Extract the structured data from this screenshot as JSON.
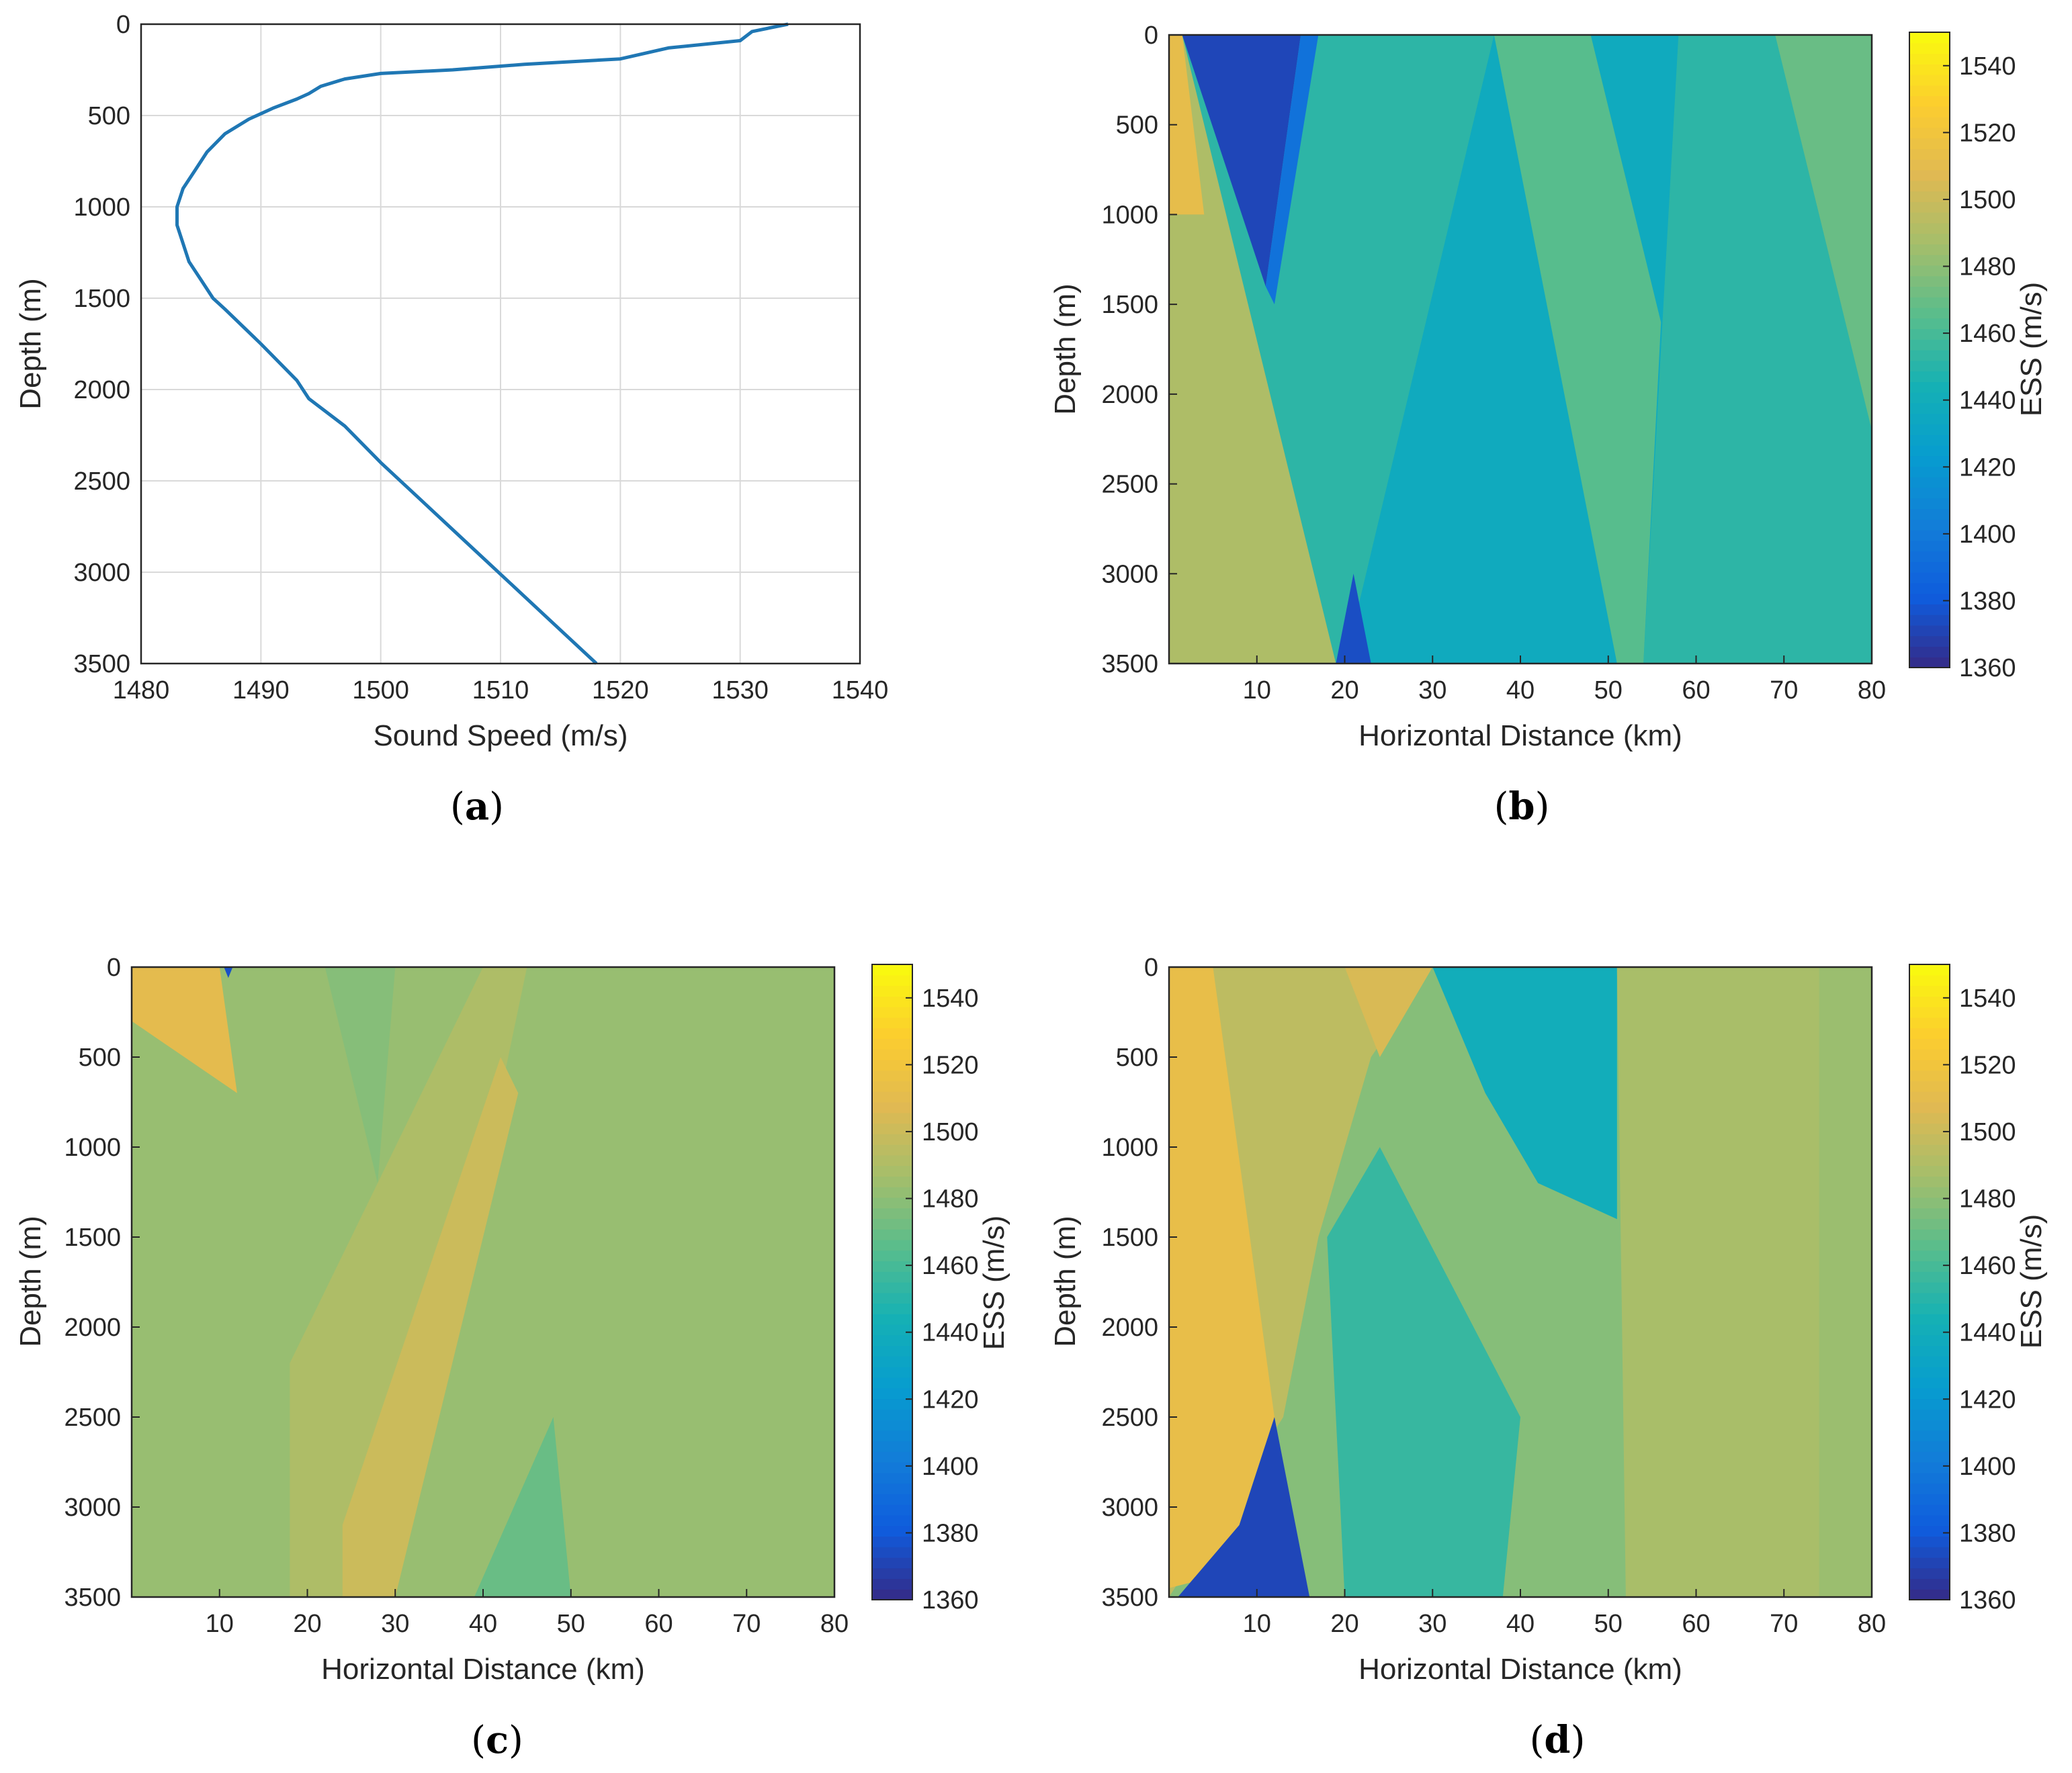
{
  "chart_data": [
    {
      "id": "a",
      "type": "line",
      "caption_open": "(",
      "caption_letter": "a",
      "caption_close": ")",
      "xlabel": "Sound Speed (m/s)",
      "ylabel": "Depth (m)",
      "xlim": [
        1480,
        1540
      ],
      "ylim": [
        0,
        3500
      ],
      "y_reversed": true,
      "grid": true,
      "xticks": [
        "1480",
        "1490",
        "1500",
        "1510",
        "1520",
        "1530",
        "1540"
      ],
      "yticks": [
        "0",
        "500",
        "1000",
        "1500",
        "2000",
        "2500",
        "3000",
        "3500"
      ],
      "line_color": "#1f77b4",
      "series": [
        {
          "name": "sound speed profile",
          "x": [
            1534,
            1531,
            1530,
            1524,
            1520,
            1512,
            1506,
            1500,
            1497,
            1495,
            1494,
            1493,
            1491,
            1490,
            1489,
            1487,
            1485.5,
            1484.5,
            1483.5,
            1483,
            1483,
            1483.5,
            1484,
            1485,
            1486,
            1487,
            1490,
            1493,
            1494,
            1497,
            1500,
            1503.6,
            1507.2,
            1510.8,
            1514.4,
            1518
          ],
          "y": [
            0,
            40,
            90,
            130,
            190,
            220,
            250,
            270,
            300,
            340,
            380,
            410,
            460,
            490,
            520,
            600,
            700,
            800,
            900,
            1000,
            1100,
            1200,
            1300,
            1400,
            1500,
            1560,
            1750,
            1950,
            2050,
            2200,
            2400,
            2620,
            2840,
            3060,
            3280,
            3500
          ]
        }
      ]
    },
    {
      "id": "b",
      "type": "heatmap",
      "caption_open": "(",
      "caption_letter": "b",
      "caption_close": ")",
      "xlabel": "Horizontal Distance (km)",
      "ylabel": "Depth (m)",
      "colorbar_label": "ESS (m/s)",
      "xlim": [
        0,
        80
      ],
      "ylim": [
        0,
        3500
      ],
      "clim": [
        1360,
        1550
      ],
      "xticks": [
        "10",
        "20",
        "30",
        "40",
        "50",
        "60",
        "70",
        "80"
      ],
      "yticks": [
        "0",
        "500",
        "1000",
        "1500",
        "2000",
        "2500",
        "3000",
        "3500"
      ],
      "cticks": [
        "1360",
        "1380",
        "1400",
        "1420",
        "1440",
        "1460",
        "1480",
        "1500",
        "1520",
        "1540"
      ],
      "regions": [
        {
          "ess": 1452,
          "poly": [
            [
              0,
              0
            ],
            [
              80,
              0
            ],
            [
              80,
              3500
            ],
            [
              0,
              3500
            ]
          ]
        },
        {
          "ess": 1437,
          "poly": [
            [
              20,
              3500
            ],
            [
              37,
              0
            ],
            [
              58,
              0
            ],
            [
              54,
              3500
            ]
          ]
        },
        {
          "ess": 1465,
          "poly": [
            [
              37,
              0
            ],
            [
              48,
              0
            ],
            [
              56,
              1600
            ],
            [
              54,
              3500
            ],
            [
              51,
              3500
            ]
          ]
        },
        {
          "ess": 1470,
          "poly": [
            [
              69,
              0
            ],
            [
              80,
              0
            ],
            [
              80,
              2200
            ]
          ]
        },
        {
          "ess": 1490,
          "poly": [
            [
              0,
              0
            ],
            [
              1.5,
              0
            ],
            [
              19,
              3500
            ],
            [
              0,
              3500
            ]
          ]
        },
        {
          "ess": 1512,
          "poly": [
            [
              0,
              0
            ],
            [
              1.5,
              0
            ],
            [
              4,
              1000
            ],
            [
              0,
              1000
            ]
          ]
        },
        {
          "ess": 1372,
          "poly": [
            [
              1.5,
              0
            ],
            [
              15,
              0
            ],
            [
              11,
              1400
            ]
          ]
        },
        {
          "ess": 1395,
          "poly": [
            [
              15,
              0
            ],
            [
              17,
              0
            ],
            [
              12,
              1500
            ],
            [
              11,
              1400
            ]
          ]
        },
        {
          "ess": 1375,
          "poly": [
            [
              19,
              3500
            ],
            [
              21,
              3000
            ],
            [
              23,
              3500
            ]
          ]
        }
      ]
    },
    {
      "id": "c",
      "type": "heatmap",
      "caption_open": "(",
      "caption_letter": "c",
      "caption_close": ")",
      "xlabel": "Horizontal Distance (km)",
      "ylabel": "Depth (m)",
      "colorbar_label": "ESS (m/s)",
      "xlim": [
        0,
        80
      ],
      "ylim": [
        0,
        3500
      ],
      "clim": [
        1360,
        1550
      ],
      "xticks": [
        "10",
        "20",
        "30",
        "40",
        "50",
        "60",
        "70",
        "80"
      ],
      "yticks": [
        "0",
        "500",
        "1000",
        "1500",
        "2000",
        "2500",
        "3000",
        "3500"
      ],
      "cticks": [
        "1360",
        "1380",
        "1400",
        "1420",
        "1440",
        "1460",
        "1480",
        "1500",
        "1520",
        "1540"
      ],
      "regions": [
        {
          "ess": 1483,
          "poly": [
            [
              0,
              0
            ],
            [
              80,
              0
            ],
            [
              80,
              3500
            ],
            [
              0,
              3500
            ]
          ]
        },
        {
          "ess": 1478,
          "poly": [
            [
              22,
              0
            ],
            [
              30,
              0
            ],
            [
              28,
              1200
            ]
          ]
        },
        {
          "ess": 1490,
          "poly": [
            [
              18,
              2200
            ],
            [
              40,
              0
            ],
            [
              45,
              0
            ],
            [
              30,
              3500
            ],
            [
              18,
              3500
            ]
          ]
        },
        {
          "ess": 1500,
          "poly": [
            [
              24,
              3100
            ],
            [
              42,
              500
            ],
            [
              44,
              700
            ],
            [
              30,
              3500
            ],
            [
              24,
              3500
            ]
          ]
        },
        {
          "ess": 1510,
          "poly": [
            [
              0,
              0
            ],
            [
              10,
              0
            ],
            [
              12,
              700
            ],
            [
              0,
              300
            ]
          ]
        },
        {
          "ess": 1470,
          "poly": [
            [
              39,
              3500
            ],
            [
              48,
              2500
            ],
            [
              50,
              3500
            ]
          ]
        },
        {
          "ess": 1376,
          "poly": [
            [
              10.5,
              0
            ],
            [
              11.5,
              0
            ],
            [
              11,
              60
            ]
          ]
        }
      ]
    },
    {
      "id": "d",
      "type": "heatmap",
      "caption_open": "(",
      "caption_letter": "d",
      "caption_close": ")",
      "xlabel": "Horizontal Distance (km)",
      "ylabel": "Depth (m)",
      "colorbar_label": "ESS (m/s)",
      "xlim": [
        0,
        80
      ],
      "ylim": [
        0,
        3500
      ],
      "clim": [
        1360,
        1550
      ],
      "xticks": [
        "10",
        "20",
        "30",
        "40",
        "50",
        "60",
        "70",
        "80"
      ],
      "yticks": [
        "0",
        "500",
        "1000",
        "1500",
        "2000",
        "2500",
        "3000",
        "3500"
      ],
      "cticks": [
        "1360",
        "1380",
        "1400",
        "1420",
        "1440",
        "1460",
        "1480",
        "1500",
        "1520",
        "1540"
      ],
      "regions": [
        {
          "ess": 1478,
          "poly": [
            [
              0,
              0
            ],
            [
              80,
              0
            ],
            [
              80,
              3500
            ],
            [
              0,
              3500
            ]
          ]
        },
        {
          "ess": 1495,
          "poly": [
            [
              0,
              0
            ],
            [
              30,
              0
            ],
            [
              23,
              500
            ],
            [
              17,
              1500
            ],
            [
              13,
              2500
            ],
            [
              0,
              3500
            ]
          ]
        },
        {
          "ess": 1505,
          "poly": [
            [
              20,
              0
            ],
            [
              30,
              0
            ],
            [
              24,
              500
            ]
          ]
        },
        {
          "ess": 1513,
          "poly": [
            [
              0,
              0
            ],
            [
              5,
              0
            ],
            [
              12,
              2500
            ],
            [
              8,
              3100
            ],
            [
              4,
              3400
            ],
            [
              0,
              3450
            ]
          ]
        },
        {
          "ess": 1372,
          "poly": [
            [
              12,
              2500
            ],
            [
              16,
              3500
            ],
            [
              1,
              3500
            ],
            [
              8,
              3100
            ]
          ]
        },
        {
          "ess": 1440,
          "poly": [
            [
              30,
              0
            ],
            [
              51,
              0
            ],
            [
              51,
              1400
            ],
            [
              42,
              1200
            ],
            [
              36,
              700
            ]
          ]
        },
        {
          "ess": 1455,
          "poly": [
            [
              18,
              1500
            ],
            [
              24,
              1000
            ],
            [
              40,
              2500
            ],
            [
              38,
              3500
            ],
            [
              20,
              3500
            ]
          ]
        },
        {
          "ess": 1488,
          "poly": [
            [
              51,
              0
            ],
            [
              80,
              0
            ],
            [
              80,
              3500
            ],
            [
              52,
              3500
            ]
          ]
        },
        {
          "ess": 1484,
          "poly": [
            [
              74,
              0
            ],
            [
              80,
              0
            ],
            [
              80,
              3500
            ],
            [
              74,
              3500
            ]
          ]
        }
      ]
    }
  ]
}
